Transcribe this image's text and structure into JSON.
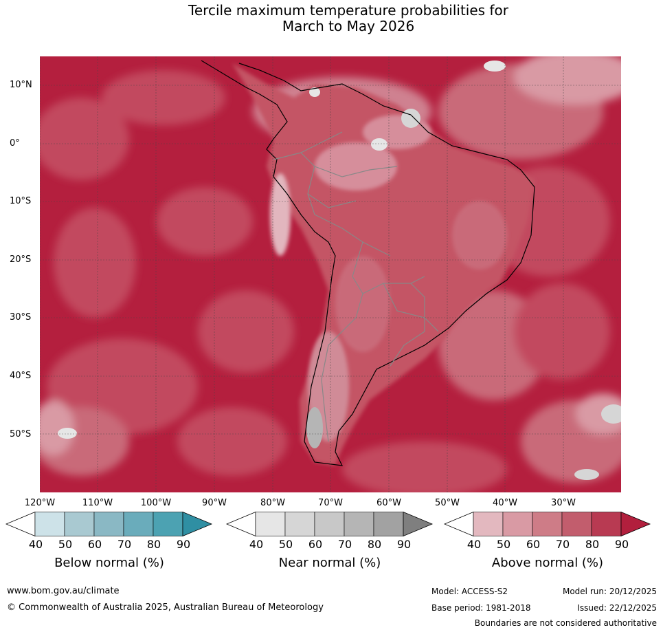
{
  "title_line1": "Tercile maximum temperature probabilities for",
  "title_line2": "March to May 2026",
  "lat_labels": [
    "10°N",
    "0°",
    "10°S",
    "20°S",
    "30°S",
    "40°S",
    "50°S"
  ],
  "lon_labels": [
    "120°W",
    "110°W",
    "100°W",
    "90°W",
    "80°W",
    "70°W",
    "60°W",
    "50°W",
    "40°W",
    "30°W"
  ],
  "colorbars": [
    {
      "label": "Below normal (%)",
      "ticks": [
        "40",
        "50",
        "60",
        "70",
        "80",
        "90"
      ],
      "colors": [
        "#ffffff",
        "#cde2e8",
        "#a9c9d1",
        "#8ab8c4",
        "#6aacbb",
        "#4ca2b2",
        "#2f8fa3"
      ]
    },
    {
      "label": "Near normal (%)",
      "ticks": [
        "40",
        "50",
        "60",
        "70",
        "80",
        "90"
      ],
      "colors": [
        "#ffffff",
        "#e6e6e6",
        "#d6d6d6",
        "#c8c8c8",
        "#b5b5b5",
        "#a2a2a2",
        "#7f7f7f"
      ]
    },
    {
      "label": "Above normal (%)",
      "ticks": [
        "40",
        "50",
        "60",
        "70",
        "80",
        "90"
      ],
      "colors": [
        "#ffffff",
        "#e3b8bf",
        "#d99aa4",
        "#ce7c87",
        "#c25d6d",
        "#b83a52",
        "#b21f3d"
      ]
    }
  ],
  "footer": {
    "website": "www.bom.gov.au/climate",
    "copyright": "© Commonwealth of Australia 2025, Australian Bureau of Meteorology",
    "model": "Model: ACCESS-S2",
    "base_period": "Base period: 1981-2018",
    "model_run": "Model run: 20/12/2025",
    "issued": "Issued: 22/12/2025",
    "disclaimer": "Boundaries are not considered authoritative"
  }
}
